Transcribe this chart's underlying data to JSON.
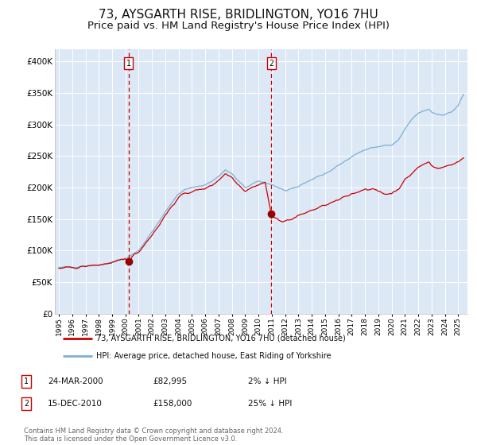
{
  "title": "73, AYSGARTH RISE, BRIDLINGTON, YO16 7HU",
  "subtitle": "Price paid vs. HM Land Registry's House Price Index (HPI)",
  "title_fontsize": 11,
  "subtitle_fontsize": 9.5,
  "background_color": "#ffffff",
  "plot_bg_color": "#dce8f5",
  "grid_color": "#ffffff",
  "hpi_line_color": "#7bafd4",
  "price_line_color": "#cc0000",
  "marker_color": "#990000",
  "vline_color": "#cc0000",
  "transaction1": {
    "year": 2000.23,
    "price": 82995,
    "label": "1"
  },
  "transaction2": {
    "year": 2010.96,
    "price": 158000,
    "label": "2"
  },
  "legend_label_red": "73, AYSGARTH RISE, BRIDLINGTON, YO16 7HU (detached house)",
  "legend_label_blue": "HPI: Average price, detached house, East Riding of Yorkshire",
  "table_rows": [
    {
      "num": "1",
      "date": "24-MAR-2000",
      "price": "£82,995",
      "pct": "2% ↓ HPI"
    },
    {
      "num": "2",
      "date": "15-DEC-2010",
      "price": "£158,000",
      "pct": "25% ↓ HPI"
    }
  ],
  "footer": "Contains HM Land Registry data © Crown copyright and database right 2024.\nThis data is licensed under the Open Government Licence v3.0.",
  "ylim": [
    0,
    420000
  ],
  "yticks": [
    0,
    50000,
    100000,
    150000,
    200000,
    250000,
    300000,
    350000,
    400000
  ],
  "xlim_start": 1994.7,
  "xlim_end": 2025.7
}
